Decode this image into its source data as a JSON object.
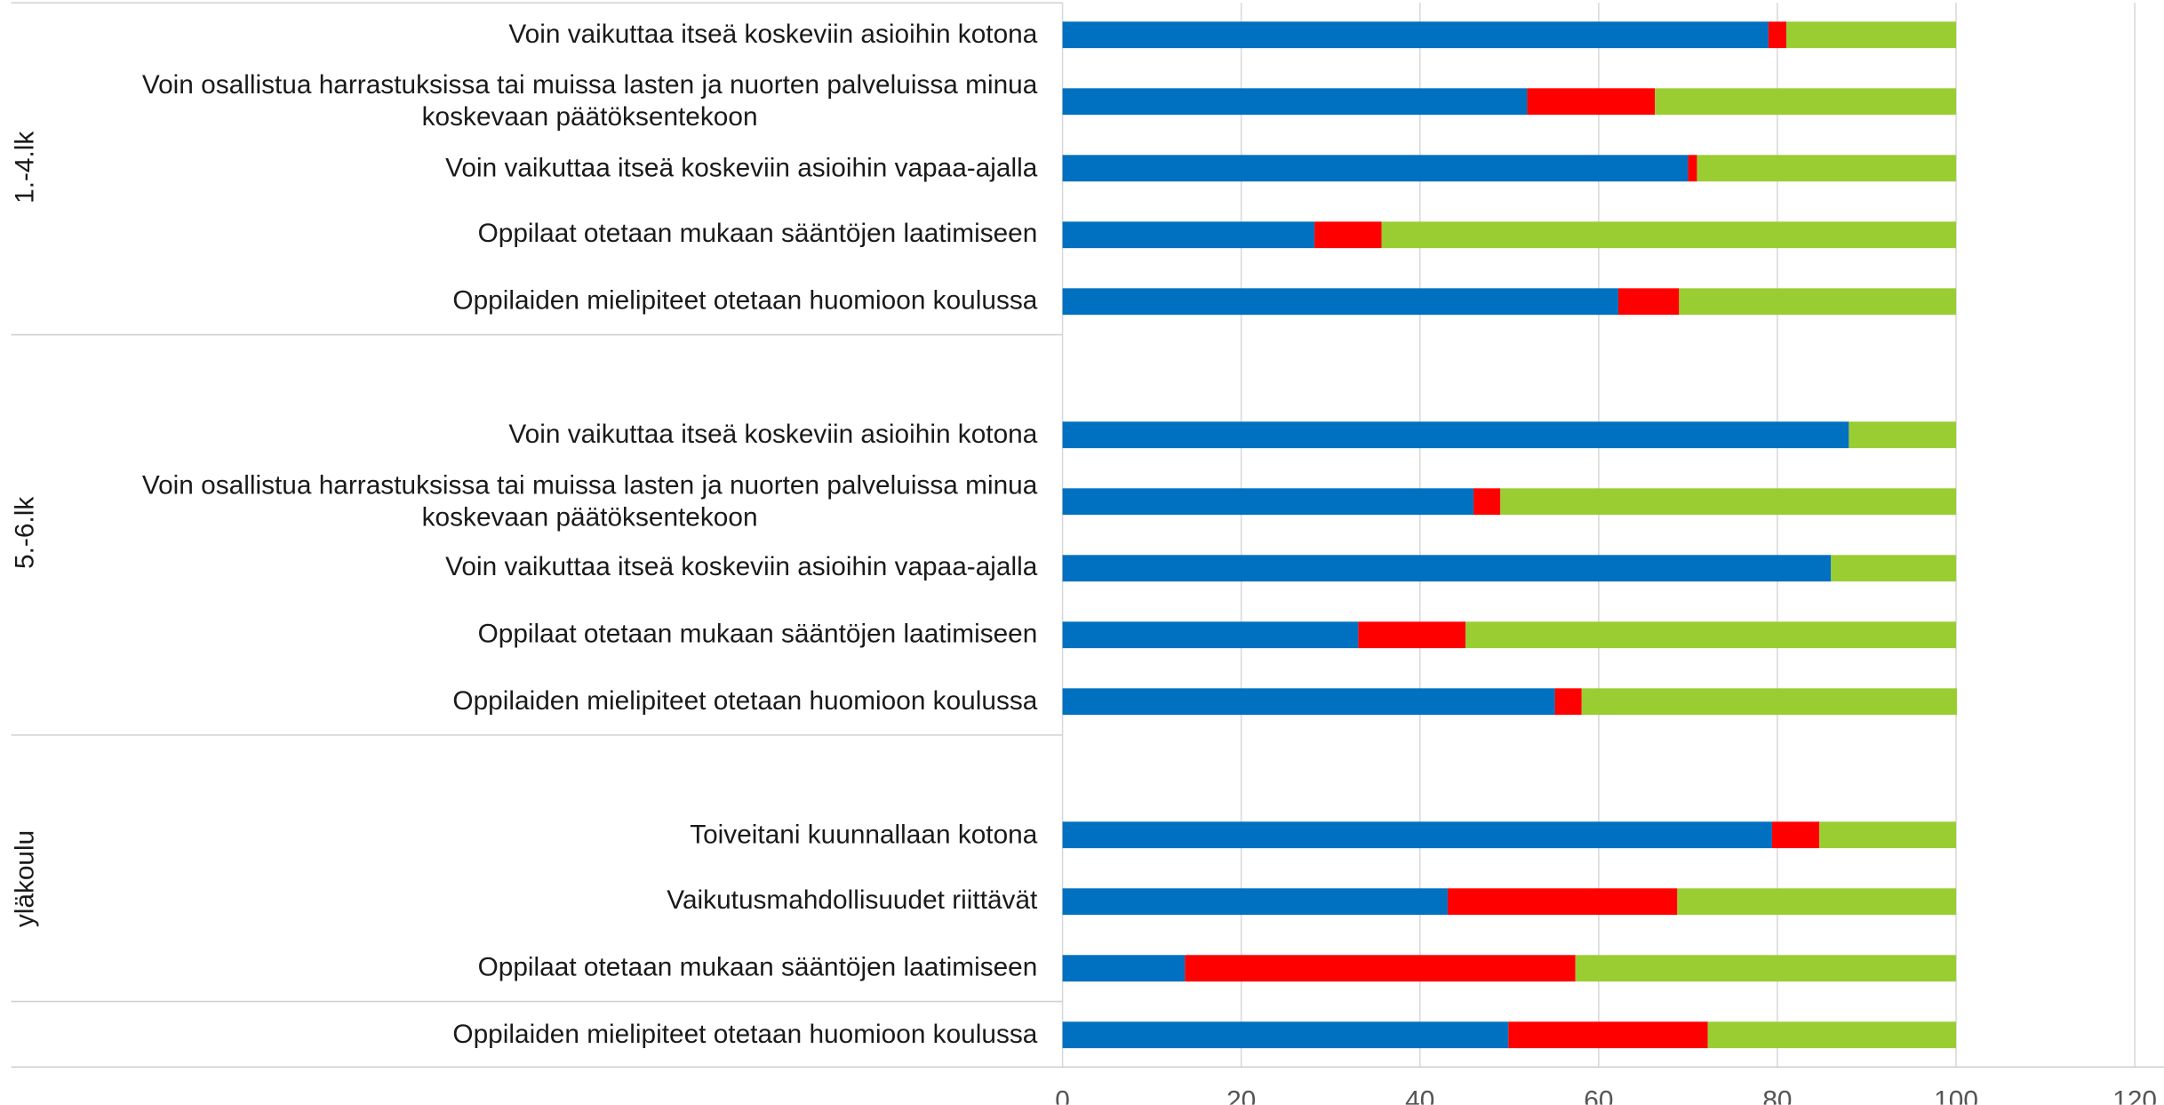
{
  "chart_data": {
    "type": "stacked-barh",
    "groups": [
      "1.-4.lk",
      "5.-6.lk",
      "yläkoulu"
    ],
    "categories": [
      "Voin vaikuttaa itseä koskeviin asioihin kotona",
      "Voin osallistua harrastuksissa tai muissa lasten ja nuorten palveluissa minua\nkoskevaan päätöksentekoon",
      "Voin vaikuttaa itseä koskeviin asioihin vapaa-ajalla",
      "Oppilaat otetaan mukaan sääntöjen laatimiseen",
      "Oppilaiden mielipiteet otetaan huomioon koulussa",
      null,
      "Voin vaikuttaa itseä koskeviin asioihin kotona",
      "Voin osallistua harrastuksissa tai muissa lasten ja nuorten palveluissa minua\nkoskevaan päätöksentekoon",
      "Voin vaikuttaa itseä koskeviin asioihin vapaa-ajalla",
      "Oppilaat otetaan mukaan sääntöjen laatimiseen",
      "Oppilaiden mielipiteet otetaan huomioon koulussa",
      null,
      "Toiveitani kuunnallaan kotona",
      "Vaikutusmahdollisuudet riittävät",
      "Oppilaat otetaan mukaan sääntöjen laatimiseen",
      "Oppilaiden mielipiteet otetaan huomioon koulussa"
    ],
    "series": [
      {
        "color": "#0070c0",
        "values": [
          79,
          52,
          70,
          28.2,
          62.2,
          null,
          88,
          46,
          86,
          33.1,
          55.1,
          null,
          79.4,
          43.1,
          13.7,
          49.9
        ]
      },
      {
        "color": "#ff0000",
        "values": [
          2,
          14.3,
          1,
          7.5,
          6.8,
          null,
          0,
          3,
          0,
          12,
          3,
          null,
          5.3,
          25.7,
          43.7,
          22.3
        ]
      },
      {
        "color": "#9acd32",
        "values": [
          19,
          33.7,
          29,
          64.3,
          31,
          null,
          12,
          51,
          14,
          54.9,
          42,
          null,
          15.3,
          31.2,
          42.6,
          27.8
        ]
      }
    ],
    "xlim": [
      0,
      120
    ],
    "xticks": [
      0,
      20,
      40,
      60,
      80,
      100,
      120
    ],
    "grid": true
  }
}
